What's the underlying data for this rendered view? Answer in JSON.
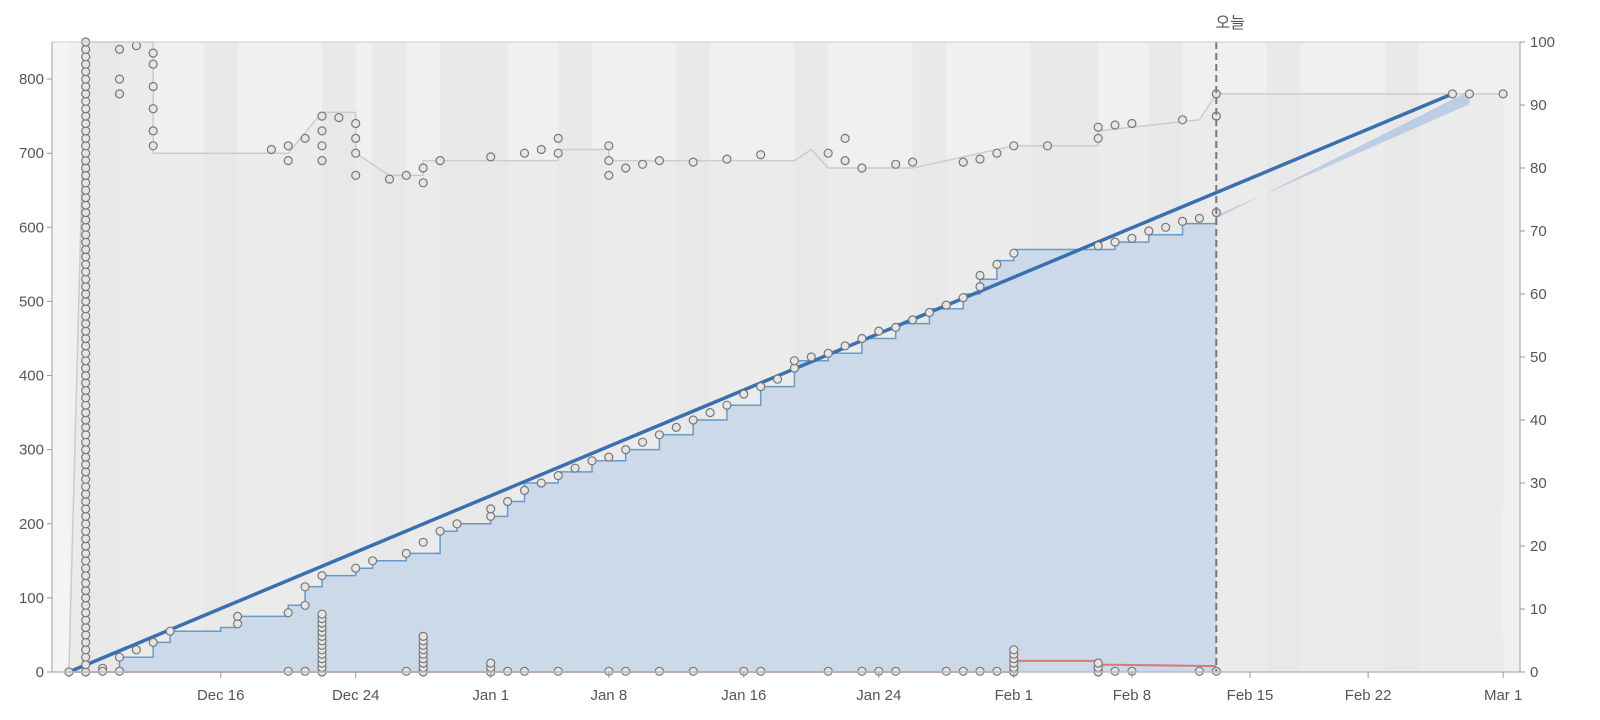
{
  "chart_data": {
    "type": "area",
    "today_label": "오늘",
    "x_axis": {
      "type": "date",
      "range": [
        "2023-12-06",
        "2024-03-02"
      ],
      "ticks": [
        {
          "date": "2023-12-16",
          "label": "Dec 16"
        },
        {
          "date": "2023-12-24",
          "label": "Dec 24"
        },
        {
          "date": "2024-01-01",
          "label": "Jan 1"
        },
        {
          "date": "2024-01-08",
          "label": "Jan 8"
        },
        {
          "date": "2024-01-16",
          "label": "Jan 16"
        },
        {
          "date": "2024-01-24",
          "label": "Jan 24"
        },
        {
          "date": "2024-02-01",
          "label": "Feb 1"
        },
        {
          "date": "2024-02-08",
          "label": "Feb 8"
        },
        {
          "date": "2024-02-15",
          "label": "Feb 15"
        },
        {
          "date": "2024-02-22",
          "label": "Feb 22"
        },
        {
          "date": "2024-03-01",
          "label": "Mar 1"
        }
      ]
    },
    "y_left": {
      "range": [
        0,
        850
      ],
      "ticks": [
        0,
        100,
        200,
        300,
        400,
        500,
        600,
        700,
        800
      ]
    },
    "y_right": {
      "range": [
        0,
        100
      ],
      "ticks": [
        0,
        10,
        20,
        30,
        40,
        50,
        60,
        70,
        80,
        90,
        100
      ]
    },
    "today_date": "2024-02-13",
    "weekend_bands": [
      [
        "2023-12-08",
        "2023-12-09"
      ],
      [
        "2023-12-15",
        "2023-12-16"
      ],
      [
        "2023-12-22",
        "2023-12-23"
      ],
      [
        "2023-12-25",
        "2023-12-26"
      ],
      [
        "2023-12-29",
        "2024-01-01"
      ],
      [
        "2024-01-05",
        "2024-01-06"
      ],
      [
        "2024-01-12",
        "2024-01-13"
      ],
      [
        "2024-01-19",
        "2024-01-20"
      ],
      [
        "2024-01-26",
        "2024-01-27"
      ],
      [
        "2024-02-02",
        "2024-02-05"
      ],
      [
        "2024-02-09",
        "2024-02-10"
      ],
      [
        "2024-02-16",
        "2024-02-17"
      ],
      [
        "2024-02-23",
        "2024-02-24"
      ]
    ],
    "colors": {
      "total_scope": "#cccccc",
      "completed": "#6699cc",
      "completed_fill": "#c9d8e8",
      "trend": "#3a6fb0",
      "bug": "#d9777a",
      "weekend": "#e9e9e9",
      "plot_bg": "#f0f0f0",
      "point_stroke": "#777777",
      "point_fill": "#e5e5e5"
    },
    "series": {
      "total_scope": [
        [
          "2023-12-07",
          0
        ],
        [
          "2023-12-08",
          850
        ],
        [
          "2023-12-12",
          850
        ],
        [
          "2023-12-12",
          760
        ],
        [
          "2023-12-12",
          700
        ],
        [
          "2023-12-20",
          700
        ],
        [
          "2023-12-22",
          755
        ],
        [
          "2023-12-24",
          755
        ],
        [
          "2023-12-24",
          700
        ],
        [
          "2023-12-26",
          670
        ],
        [
          "2023-12-28",
          670
        ],
        [
          "2023-12-28",
          690
        ],
        [
          "2024-01-05",
          690
        ],
        [
          "2024-01-05",
          705
        ],
        [
          "2024-01-08",
          705
        ],
        [
          "2024-01-08",
          690
        ],
        [
          "2024-01-19",
          690
        ],
        [
          "2024-01-20",
          705
        ],
        [
          "2024-01-21",
          680
        ],
        [
          "2024-01-26",
          680
        ],
        [
          "2024-01-28",
          690
        ],
        [
          "2024-02-01",
          710
        ],
        [
          "2024-02-06",
          710
        ],
        [
          "2024-02-06",
          730
        ],
        [
          "2024-02-12",
          745
        ],
        [
          "2024-02-13",
          780
        ],
        [
          "2024-03-01",
          780
        ]
      ],
      "completed": [
        [
          "2023-12-07",
          0
        ],
        [
          "2023-12-10",
          20
        ],
        [
          "2023-12-12",
          40
        ],
        [
          "2023-12-13",
          55
        ],
        [
          "2023-12-16",
          60
        ],
        [
          "2023-12-17",
          75
        ],
        [
          "2023-12-20",
          90
        ],
        [
          "2023-12-21",
          115
        ],
        [
          "2023-12-22",
          130
        ],
        [
          "2023-12-24",
          140
        ],
        [
          "2023-12-25",
          150
        ],
        [
          "2023-12-27",
          160
        ],
        [
          "2023-12-29",
          190
        ],
        [
          "2023-12-30",
          200
        ],
        [
          "2024-01-01",
          210
        ],
        [
          "2024-01-02",
          230
        ],
        [
          "2024-01-03",
          255
        ],
        [
          "2024-01-05",
          270
        ],
        [
          "2024-01-07",
          285
        ],
        [
          "2024-01-09",
          300
        ],
        [
          "2024-01-11",
          320
        ],
        [
          "2024-01-13",
          340
        ],
        [
          "2024-01-15",
          360
        ],
        [
          "2024-01-17",
          385
        ],
        [
          "2024-01-19",
          420
        ],
        [
          "2024-01-21",
          430
        ],
        [
          "2024-01-23",
          450
        ],
        [
          "2024-01-25",
          470
        ],
        [
          "2024-01-27",
          490
        ],
        [
          "2024-01-29",
          510
        ],
        [
          "2024-01-30",
          530
        ],
        [
          "2024-01-31",
          555
        ],
        [
          "2024-02-01",
          570
        ],
        [
          "2024-02-06",
          570
        ],
        [
          "2024-02-07",
          580
        ],
        [
          "2024-02-09",
          590
        ],
        [
          "2024-02-11",
          605
        ],
        [
          "2024-02-13",
          620
        ]
      ],
      "trend": [
        [
          "2023-12-07",
          0
        ],
        [
          "2024-02-27",
          780
        ]
      ],
      "forecast_band": [
        [
          "2024-02-13",
          620
        ],
        [
          "2024-02-28",
          780
        ]
      ],
      "bugs": [
        [
          "2023-12-07",
          0
        ],
        [
          "2023-12-10",
          0
        ],
        [
          "2024-02-01",
          0
        ],
        [
          "2024-02-01",
          15
        ],
        [
          "2024-02-06",
          15
        ],
        [
          "2024-02-06",
          10
        ],
        [
          "2024-02-13",
          8
        ]
      ]
    },
    "points": {
      "scope": [
        [
          "2023-12-12",
          835
        ],
        [
          "2023-12-12",
          820
        ],
        [
          "2023-12-12",
          790
        ],
        [
          "2023-12-12",
          760
        ],
        [
          "2023-12-12",
          730
        ],
        [
          "2023-12-12",
          710
        ],
        [
          "2023-12-10",
          840
        ],
        [
          "2023-12-10",
          800
        ],
        [
          "2023-12-10",
          780
        ],
        [
          "2023-12-11",
          845
        ],
        [
          "2023-12-19",
          705
        ],
        [
          "2023-12-20",
          710
        ],
        [
          "2023-12-20",
          690
        ],
        [
          "2023-12-21",
          720
        ],
        [
          "2023-12-22",
          750
        ],
        [
          "2023-12-22",
          730
        ],
        [
          "2023-12-22",
          710
        ],
        [
          "2023-12-22",
          690
        ],
        [
          "2023-12-23",
          748
        ],
        [
          "2023-12-24",
          740
        ],
        [
          "2023-12-24",
          720
        ],
        [
          "2023-12-24",
          700
        ],
        [
          "2023-12-24",
          670
        ],
        [
          "2023-12-26",
          665
        ],
        [
          "2023-12-27",
          670
        ],
        [
          "2023-12-28",
          680
        ],
        [
          "2023-12-28",
          660
        ],
        [
          "2023-12-29",
          690
        ],
        [
          "2024-01-01",
          695
        ],
        [
          "2024-01-03",
          700
        ],
        [
          "2024-01-04",
          705
        ],
        [
          "2024-01-05",
          720
        ],
        [
          "2024-01-05",
          700
        ],
        [
          "2024-01-08",
          710
        ],
        [
          "2024-01-08",
          690
        ],
        [
          "2024-01-08",
          670
        ],
        [
          "2024-01-09",
          680
        ],
        [
          "2024-01-10",
          685
        ],
        [
          "2024-01-11",
          690
        ],
        [
          "2024-01-13",
          688
        ],
        [
          "2024-01-15",
          692
        ],
        [
          "2024-01-17",
          698
        ],
        [
          "2024-01-21",
          700
        ],
        [
          "2024-01-22",
          720
        ],
        [
          "2024-01-22",
          690
        ],
        [
          "2024-01-23",
          680
        ],
        [
          "2024-01-25",
          685
        ],
        [
          "2024-01-26",
          688
        ],
        [
          "2024-01-29",
          688
        ],
        [
          "2024-01-30",
          692
        ],
        [
          "2024-01-31",
          700
        ],
        [
          "2024-02-01",
          710
        ],
        [
          "2024-02-03",
          710
        ],
        [
          "2024-02-06",
          735
        ],
        [
          "2024-02-06",
          720
        ],
        [
          "2024-02-07",
          738
        ],
        [
          "2024-02-08",
          740
        ],
        [
          "2024-02-11",
          745
        ],
        [
          "2024-02-13",
          780
        ],
        [
          "2024-02-13",
          750
        ],
        [
          "2024-02-27",
          780
        ],
        [
          "2024-02-28",
          780
        ],
        [
          "2024-03-01",
          780
        ]
      ],
      "burn": [
        [
          "2023-12-07",
          0
        ],
        [
          "2023-12-09",
          5
        ],
        [
          "2023-12-10",
          20
        ],
        [
          "2023-12-11",
          30
        ],
        [
          "2023-12-12",
          40
        ],
        [
          "2023-12-13",
          55
        ],
        [
          "2023-12-17",
          65
        ],
        [
          "2023-12-17",
          75
        ],
        [
          "2023-12-20",
          80
        ],
        [
          "2023-12-21",
          90
        ],
        [
          "2023-12-21",
          115
        ],
        [
          "2023-12-22",
          130
        ],
        [
          "2023-12-24",
          140
        ],
        [
          "2023-12-25",
          150
        ],
        [
          "2023-12-27",
          160
        ],
        [
          "2023-12-28",
          175
        ],
        [
          "2023-12-29",
          190
        ],
        [
          "2023-12-30",
          200
        ],
        [
          "2024-01-01",
          210
        ],
        [
          "2024-01-01",
          220
        ],
        [
          "2024-01-02",
          230
        ],
        [
          "2024-01-03",
          245
        ],
        [
          "2024-01-04",
          255
        ],
        [
          "2024-01-05",
          265
        ],
        [
          "2024-01-06",
          275
        ],
        [
          "2024-01-07",
          285
        ],
        [
          "2024-01-08",
          290
        ],
        [
          "2024-01-09",
          300
        ],
        [
          "2024-01-10",
          310
        ],
        [
          "2024-01-11",
          320
        ],
        [
          "2024-01-12",
          330
        ],
        [
          "2024-01-13",
          340
        ],
        [
          "2024-01-14",
          350
        ],
        [
          "2024-01-15",
          360
        ],
        [
          "2024-01-16",
          375
        ],
        [
          "2024-01-17",
          385
        ],
        [
          "2024-01-18",
          395
        ],
        [
          "2024-01-19",
          410
        ],
        [
          "2024-01-19",
          420
        ],
        [
          "2024-01-20",
          425
        ],
        [
          "2024-01-21",
          430
        ],
        [
          "2024-01-22",
          440
        ],
        [
          "2024-01-23",
          450
        ],
        [
          "2024-01-24",
          460
        ],
        [
          "2024-01-25",
          465
        ],
        [
          "2024-01-26",
          475
        ],
        [
          "2024-01-27",
          485
        ],
        [
          "2024-01-28",
          495
        ],
        [
          "2024-01-29",
          505
        ],
        [
          "2024-01-30",
          520
        ],
        [
          "2024-01-30",
          535
        ],
        [
          "2024-01-31",
          550
        ],
        [
          "2024-02-01",
          565
        ],
        [
          "2024-02-06",
          575
        ],
        [
          "2024-02-07",
          580
        ],
        [
          "2024-02-08",
          585
        ],
        [
          "2024-02-09",
          595
        ],
        [
          "2024-02-10",
          600
        ],
        [
          "2024-02-11",
          608
        ],
        [
          "2024-02-12",
          612
        ],
        [
          "2024-02-13",
          620
        ]
      ],
      "scope_cluster": {
        "date": "2023-12-08",
        "from": 0,
        "to": 850,
        "step": 10
      },
      "zero_row": [
        "2023-12-09",
        "2023-12-10",
        "2023-12-20",
        "2023-12-21",
        "2023-12-27",
        "2023-12-28",
        "2024-01-02",
        "2024-01-03",
        "2024-01-05",
        "2024-01-08",
        "2024-01-09",
        "2024-01-11",
        "2024-01-13",
        "2024-01-16",
        "2024-01-17",
        "2024-01-21",
        "2024-01-23",
        "2024-01-24",
        "2024-01-25",
        "2024-01-28",
        "2024-01-29",
        "2024-01-30",
        "2024-01-31",
        "2024-02-01",
        "2024-02-06",
        "2024-02-07",
        "2024-02-08",
        "2024-02-12",
        "2024-02-13"
      ],
      "zero_stacks": [
        {
          "date": "2023-12-22",
          "to": 80
        },
        {
          "date": "2023-12-28",
          "to": 50
        },
        {
          "date": "2024-02-01",
          "to": 35
        },
        {
          "date": "2024-02-06",
          "to": 15
        },
        {
          "date": "2024-01-01",
          "to": 15
        }
      ]
    }
  }
}
